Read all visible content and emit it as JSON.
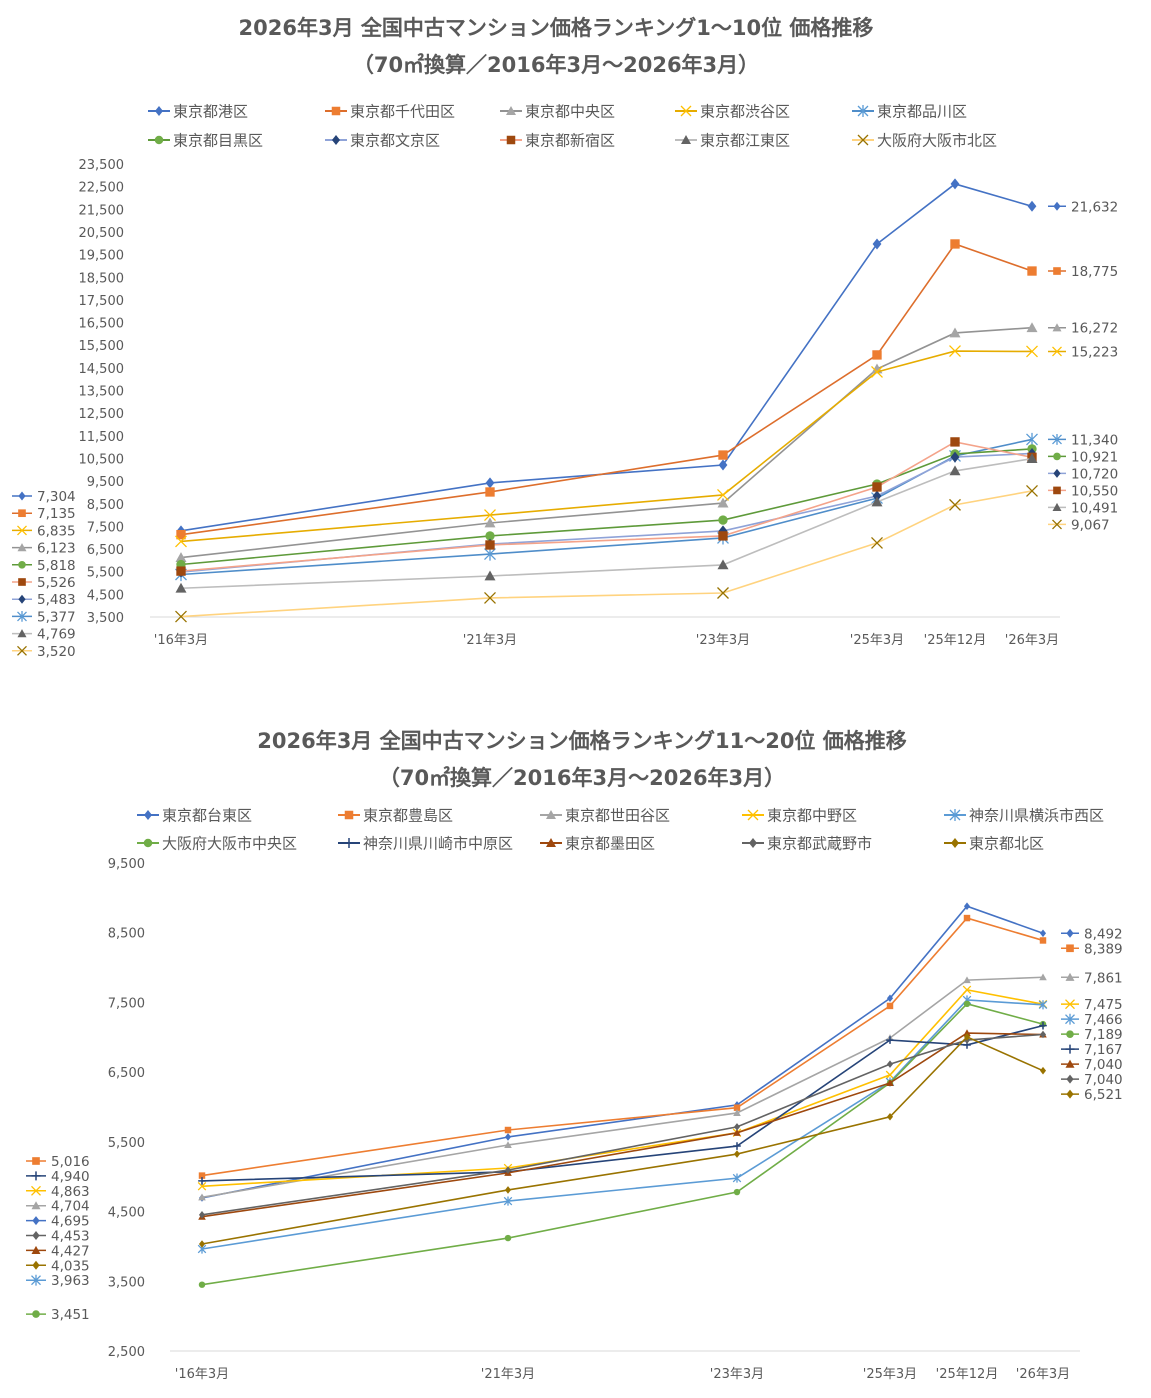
{
  "chart_data": [
    {
      "type": "line",
      "title": [
        "2026年3月 全国中古マンション価格ランキング1～10位 価格推移",
        "（70㎡換算／2016年3月～2026年3月）"
      ],
      "xlabel": "",
      "ylabel": "",
      "categories": [
        "'16年3月",
        "'21年3月",
        "'23年3月",
        "'25年3月",
        "'25年12月",
        "'26年3月"
      ],
      "ylim": [
        3500,
        23500
      ],
      "y_ticks": [
        3500,
        4500,
        5500,
        6500,
        7500,
        8500,
        9500,
        10500,
        11500,
        12500,
        13500,
        14500,
        15500,
        16500,
        17500,
        18500,
        19500,
        20500,
        21500,
        22500,
        23500
      ],
      "grid": false,
      "legend_position": "top",
      "series": [
        {
          "name": "東京都港区",
          "color": "#4472C4",
          "line": "#4472C4",
          "marker": "diamond",
          "values": [
            7304,
            9420,
            10210,
            19970,
            22620,
            21632
          ]
        },
        {
          "name": "東京都千代田区",
          "color": "#ED7D31",
          "line": "#DD6E2C",
          "marker": "square",
          "values": [
            7135,
            9020,
            10650,
            15070,
            19970,
            18775
          ]
        },
        {
          "name": "東京都中央区",
          "color": "#A5A5A5",
          "line": "#939393",
          "marker": "triangle",
          "values": [
            6123,
            7650,
            8530,
            14450,
            16040,
            16272
          ]
        },
        {
          "name": "東京都渋谷区",
          "color": "#FFC000",
          "line": "#E6AC00",
          "marker": "x",
          "values": [
            6835,
            8000,
            8890,
            14320,
            15240,
            15223
          ]
        },
        {
          "name": "東京都品川区",
          "color": "#5B9BD5",
          "line": "#4F8DC9",
          "marker": "asterisk",
          "values": [
            5377,
            6280,
            6990,
            8750,
            10610,
            11340
          ]
        },
        {
          "name": "東京都目黒区",
          "color": "#70AD47",
          "line": "#5E9A3A",
          "marker": "circle",
          "values": [
            5818,
            7080,
            7780,
            9370,
            10700,
            10921
          ]
        },
        {
          "name": "東京都文京区",
          "color": "#264478",
          "line": "#8FA3D8",
          "marker": "diamond",
          "values": [
            5483,
            6720,
            7300,
            8840,
            10560,
            10720
          ]
        },
        {
          "name": "東京都新宿区",
          "color": "#9E480E",
          "line": "#F4A38A",
          "marker": "square",
          "values": [
            5526,
            6680,
            7080,
            9240,
            11230,
            10550
          ]
        },
        {
          "name": "東京都江東区",
          "color": "#636363",
          "line": "#BDBDBD",
          "marker": "triangle",
          "values": [
            4769,
            5310,
            5800,
            8580,
            9950,
            10491
          ]
        },
        {
          "name": "大阪府大阪市北区",
          "color": "#997300",
          "line": "#FFD37F",
          "marker": "x",
          "values": [
            3520,
            4340,
            4560,
            6770,
            8450,
            9067
          ]
        }
      ]
    },
    {
      "type": "line",
      "title": [
        "2026年3月 全国中古マンション価格ランキング11～20位 価格推移",
        "（70㎡換算／2016年3月～2026年3月）"
      ],
      "xlabel": "",
      "ylabel": "",
      "categories": [
        "'16年3月",
        "'21年3月",
        "'23年3月",
        "'25年3月",
        "'25年12月",
        "'26年3月"
      ],
      "ylim": [
        2500,
        9500
      ],
      "y_ticks": [
        2500,
        3500,
        4500,
        5500,
        6500,
        7500,
        8500,
        9500
      ],
      "grid": false,
      "legend_position": "top",
      "series": [
        {
          "name": "東京都台東区",
          "color": "#4472C4",
          "line": "#4472C4",
          "marker": "diamond",
          "values": [
            4695,
            5570,
            6030,
            7560,
            8880,
            8492
          ]
        },
        {
          "name": "東京都豊島区",
          "color": "#ED7D31",
          "line": "#ED7D31",
          "marker": "square",
          "values": [
            5016,
            5670,
            5990,
            7450,
            8710,
            8389
          ]
        },
        {
          "name": "東京都世田谷区",
          "color": "#A5A5A5",
          "line": "#A5A5A5",
          "marker": "triangle",
          "values": [
            4704,
            5455,
            5915,
            6990,
            7820,
            7861
          ]
        },
        {
          "name": "東京都中野区",
          "color": "#FFC000",
          "line": "#FFC000",
          "marker": "x",
          "values": [
            4863,
            5125,
            5630,
            6460,
            7680,
            7475
          ]
        },
        {
          "name": "神奈川県横浜市西区",
          "color": "#5B9BD5",
          "line": "#5B9BD5",
          "marker": "asterisk",
          "values": [
            3963,
            4650,
            4980,
            6360,
            7535,
            7466
          ]
        },
        {
          "name": "大阪府大阪市中央区",
          "color": "#70AD47",
          "line": "#70AD47",
          "marker": "circle",
          "values": [
            3451,
            4120,
            4780,
            6345,
            7480,
            7189
          ]
        },
        {
          "name": "神奈川県川崎市中原区",
          "color": "#264478",
          "line": "#264478",
          "marker": "plus",
          "values": [
            4940,
            5070,
            5440,
            6960,
            6890,
            7167
          ]
        },
        {
          "name": "東京都墨田区",
          "color": "#9E480E",
          "line": "#9E480E",
          "marker": "triangle",
          "values": [
            4427,
            5055,
            5630,
            6345,
            7060,
            7040
          ]
        },
        {
          "name": "東京都武蔵野市",
          "color": "#636363",
          "line": "#636363",
          "marker": "diamond",
          "values": [
            4453,
            5095,
            5715,
            6615,
            6960,
            7040
          ]
        },
        {
          "name": "東京都北区",
          "color": "#997300",
          "line": "#997300",
          "marker": "diamond",
          "values": [
            4035,
            4810,
            5325,
            5860,
            7005,
            6521
          ]
        }
      ]
    }
  ]
}
